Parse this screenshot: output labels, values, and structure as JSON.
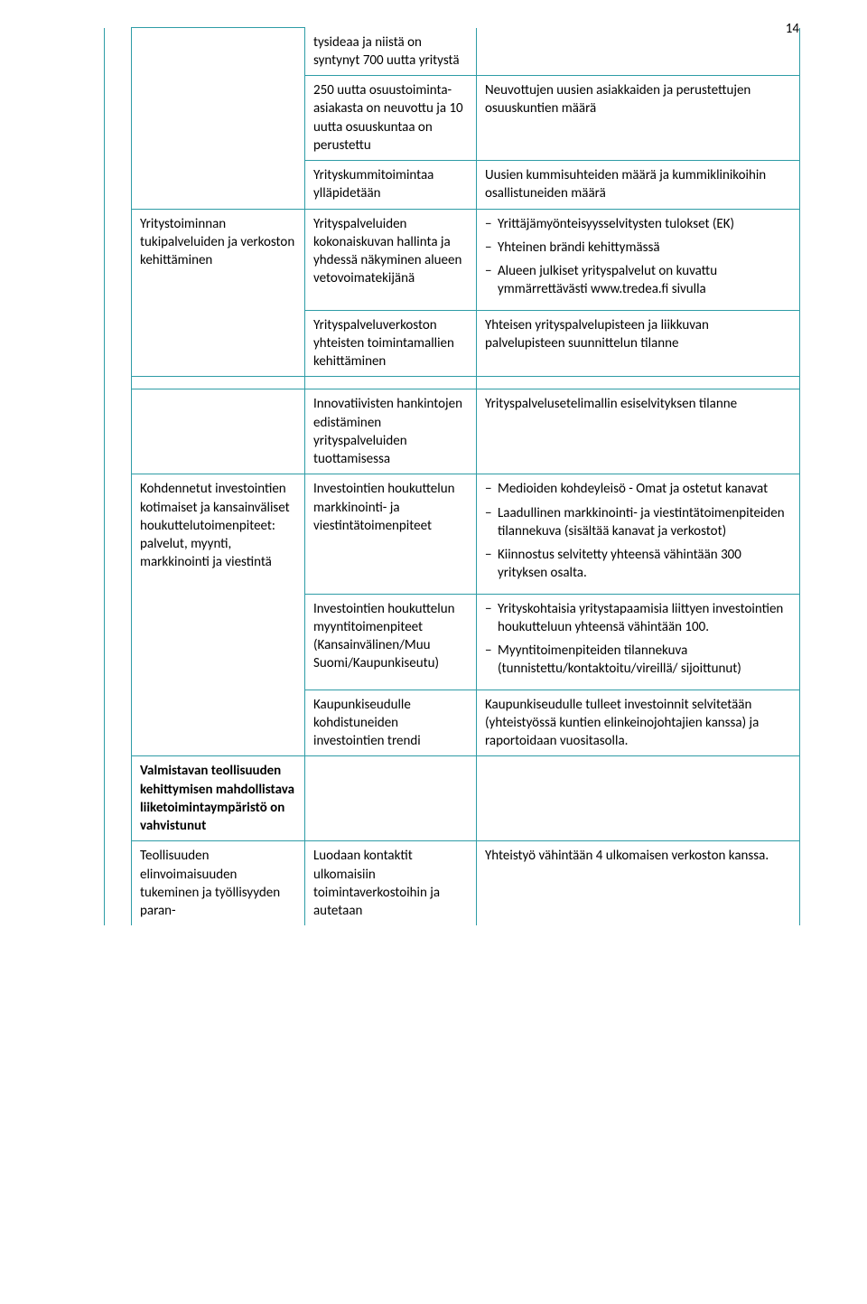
{
  "page_number": "14",
  "colors": {
    "border": "#2e9ca6",
    "text": "#000000",
    "background": "#ffffff"
  },
  "typography": {
    "font_family": "Calibri",
    "base_size_pt": 11
  },
  "rows": {
    "r1": {
      "col2": "tysideaa ja niistä on syntynyt 700 uutta yritystä",
      "col3": ""
    },
    "r2": {
      "col2": "250 uutta osuustoiminta-asiakasta on neuvottu ja 10 uutta osuuskuntaa on perustettu",
      "col3": "Neuvottujen uusien asiakkaiden ja perustettujen osuuskuntien määrä"
    },
    "r3": {
      "col2": "Yrityskummitoimintaa ylläpidetään",
      "col3": "Uusien kummisuhteiden määrä ja kummiklinikoihin osallistuneiden määrä"
    },
    "r4": {
      "col1": "Yritystoiminnan tukipalveluiden ja verkoston kehittäminen",
      "col2": "Yrityspalveluiden kokonaiskuvan hallinta ja yhdessä näkyminen alueen vetovoimatekijänä",
      "col3_items": [
        "Yrittäjämyönteisyysselvitysten tulokset (EK)",
        "Yhteinen brändi kehittymässä",
        "Alueen julkiset yrityspalvelut on kuvattu ymmärrettävästi www.tredea.fi sivulla"
      ]
    },
    "r5": {
      "col2": "Yrityspalveluverkoston yhteisten toimintamallien kehittäminen",
      "col3": "Yhteisen yrityspalvelupisteen ja liikkuvan palvelupisteen suunnittelun tilanne"
    },
    "r6": {
      "col2": "Innovatiivisten hankintojen edistäminen yrityspalveluiden tuottamisessa",
      "col3": "Yrityspalvelusetelimallin esiselvityksen tilanne"
    },
    "r7": {
      "col1": "Kohdennetut investointien kotimaiset ja kansainväliset houkuttelutoimenpiteet: palvelut, myynti, markkinointi ja viestintä",
      "col2": "Investointien houkuttelun markkinointi- ja viestintätoimenpiteet",
      "col3_items": [
        "Medioiden kohdeyleisö - Omat ja ostetut kanavat",
        "Laadullinen markkinointi- ja viestintätoimenpiteiden tilannekuva (sisältää kanavat ja verkostot)",
        "Kiinnostus selvitetty yhteensä vähintään 300 yrityksen osalta."
      ]
    },
    "r8": {
      "col2": "Investointien houkuttelun myyntitoimenpiteet (Kansainvälinen/Muu Suomi/Kaupunkiseutu)",
      "col3_items": [
        "Yrityskohtaisia yritystapaamisia liittyen investointien houkutteluun yhteensä vähintään 100.",
        "Myyntitoimenpiteiden tilannekuva (tunnistettu/kontaktoitu/vireillä/ sijoittunut)"
      ]
    },
    "r9": {
      "col2": "Kaupunkiseudulle kohdistuneiden investointien trendi",
      "col3": "Kaupunkiseudulle tulleet investoinnit selvitetään (yhteistyössä kuntien elinkeinojohtajien kanssa) ja raportoidaan vuositasolla."
    },
    "r10": {
      "col1": "Valmistavan teollisuuden kehittymisen mahdollistava liiketoimintaympäristö on vahvistunut"
    },
    "r11": {
      "col1": "Teollisuuden elinvoimaisuuden tukeminen ja työllisyyden paran-",
      "col2": "Luodaan kontaktit ulkomaisiin toimintaverkostoihin ja autetaan",
      "col3": "Yhteistyö vähintään 4 ulkomaisen verkoston kanssa."
    }
  }
}
